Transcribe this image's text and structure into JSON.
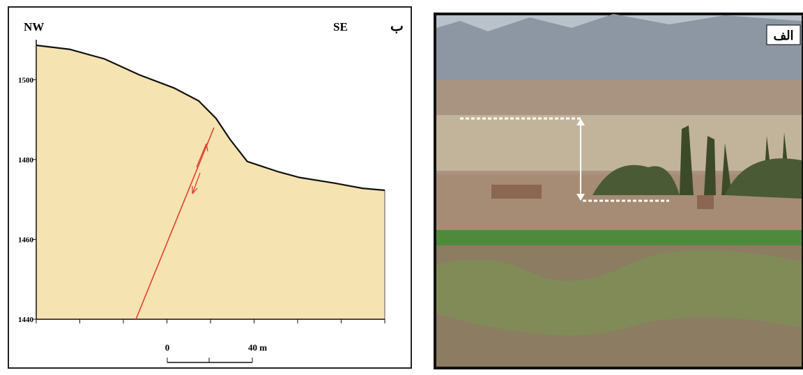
{
  "chart_data": {
    "type": "area",
    "panel_label": "ب",
    "left_label": "NW",
    "right_label": "SE",
    "x": [
      0,
      15.7,
      32.1,
      48.5,
      64.9,
      76.4,
      84.6,
      91.1,
      99.3,
      114.1,
      123.9,
      140.3,
      153.4,
      164
    ],
    "values": [
      1508.6,
      1507.6,
      1505.2,
      1501.2,
      1497.9,
      1494.7,
      1490.3,
      1485.1,
      1479.5,
      1476.9,
      1475.5,
      1474.1,
      1472.8,
      1472.3
    ],
    "color": "#f5e3b1",
    "line_color": "#111111",
    "xlim": [
      0,
      164
    ],
    "ylim": [
      1440,
      1510
    ],
    "yticks": [
      1440,
      1460,
      1480,
      1500
    ],
    "scale_labels": [
      "0",
      "40 m"
    ]
  },
  "photo": {
    "label": "الف"
  }
}
